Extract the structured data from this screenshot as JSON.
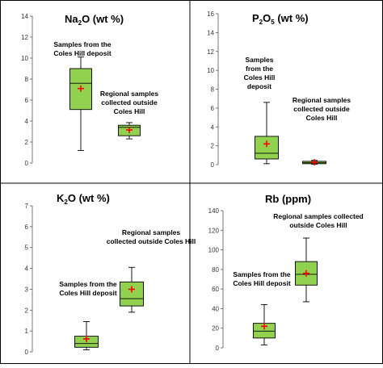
{
  "colors": {
    "box_fill": "#92d050",
    "box_stroke": "#000000",
    "mean_marker": "#ff0000",
    "frame": "#000000"
  },
  "chart_data": [
    {
      "type": "box",
      "title_main": "Na",
      "title_sub": "2",
      "title_rest": "O (wt %)",
      "ylim": [
        0,
        14
      ],
      "yticks": [
        0,
        2,
        4,
        6,
        8,
        10,
        12,
        14
      ],
      "grid": false,
      "legend": "none",
      "boxes": [
        {
          "min": 1.2,
          "q1": 5.1,
          "median": 7.6,
          "q3": 9.0,
          "max": 10.1,
          "mean": 7.1
        },
        {
          "min": 2.3,
          "q1": 2.6,
          "median": 3.4,
          "q3": 3.6,
          "max": 3.85,
          "mean": 3.15
        }
      ],
      "annotations": [
        {
          "lines": [
            "Samples from the",
            "Coles Hill deposit"
          ]
        },
        {
          "lines": [
            "Regional samples",
            "collected outside",
            "Coles Hill"
          ]
        }
      ]
    },
    {
      "type": "box",
      "title_main": "P",
      "title_sub": "2",
      "title_rest": "O  (wt %)",
      "title_sub2": "5",
      "ylim": [
        0,
        16
      ],
      "yticks": [
        0,
        2,
        4,
        6,
        8,
        10,
        12,
        14,
        16
      ],
      "grid": false,
      "legend": "none",
      "boxes": [
        {
          "min": 0.1,
          "q1": 0.6,
          "median": 1.2,
          "q3": 3.0,
          "max": 6.6,
          "mean": 2.2
        },
        {
          "min": 0.05,
          "q1": 0.1,
          "median": 0.2,
          "q3": 0.35,
          "max": 0.45,
          "mean": 0.25
        }
      ],
      "annotations": [
        {
          "lines": [
            "Samples",
            "from the",
            "Coles Hill",
            "deposit"
          ]
        },
        {
          "lines": [
            "Regional samples",
            "collected outside",
            "Coles Hill"
          ]
        }
      ]
    },
    {
      "type": "box",
      "title_main": "K",
      "title_sub": "2",
      "title_rest": "O (wt %)",
      "ylim": [
        0,
        7
      ],
      "yticks": [
        0,
        1,
        2,
        3,
        4,
        5,
        6,
        7
      ],
      "grid": false,
      "legend": "none",
      "boxes": [
        {
          "min": 0.1,
          "q1": 0.22,
          "median": 0.4,
          "q3": 0.75,
          "max": 1.45,
          "mean": 0.62
        },
        {
          "min": 1.9,
          "q1": 2.2,
          "median": 2.55,
          "q3": 3.35,
          "max": 4.05,
          "mean": 3.0
        }
      ],
      "annotations": [
        {
          "lines": [
            "Regional  samples",
            "collected outside Coles Hill"
          ]
        },
        {
          "lines": [
            "Samples from the",
            "Coles Hill deposit"
          ]
        }
      ]
    },
    {
      "type": "box",
      "title_main": "Rb (ppm)",
      "title_sub": "",
      "title_rest": "",
      "ylim": [
        0,
        140
      ],
      "yticks": [
        0,
        20,
        40,
        60,
        80,
        100,
        120,
        140
      ],
      "grid": false,
      "legend": "none",
      "boxes": [
        {
          "min": 3,
          "q1": 10,
          "median": 17,
          "q3": 25,
          "max": 44,
          "mean": 22
        },
        {
          "min": 47,
          "q1": 64,
          "median": 75,
          "q3": 88,
          "max": 112,
          "mean": 76
        }
      ],
      "annotations": [
        {
          "lines": [
            "Regional samples collected",
            "outside Coles Hill"
          ]
        },
        {
          "lines": [
            "Samples from the",
            "Coles Hill deposit"
          ]
        }
      ]
    }
  ]
}
